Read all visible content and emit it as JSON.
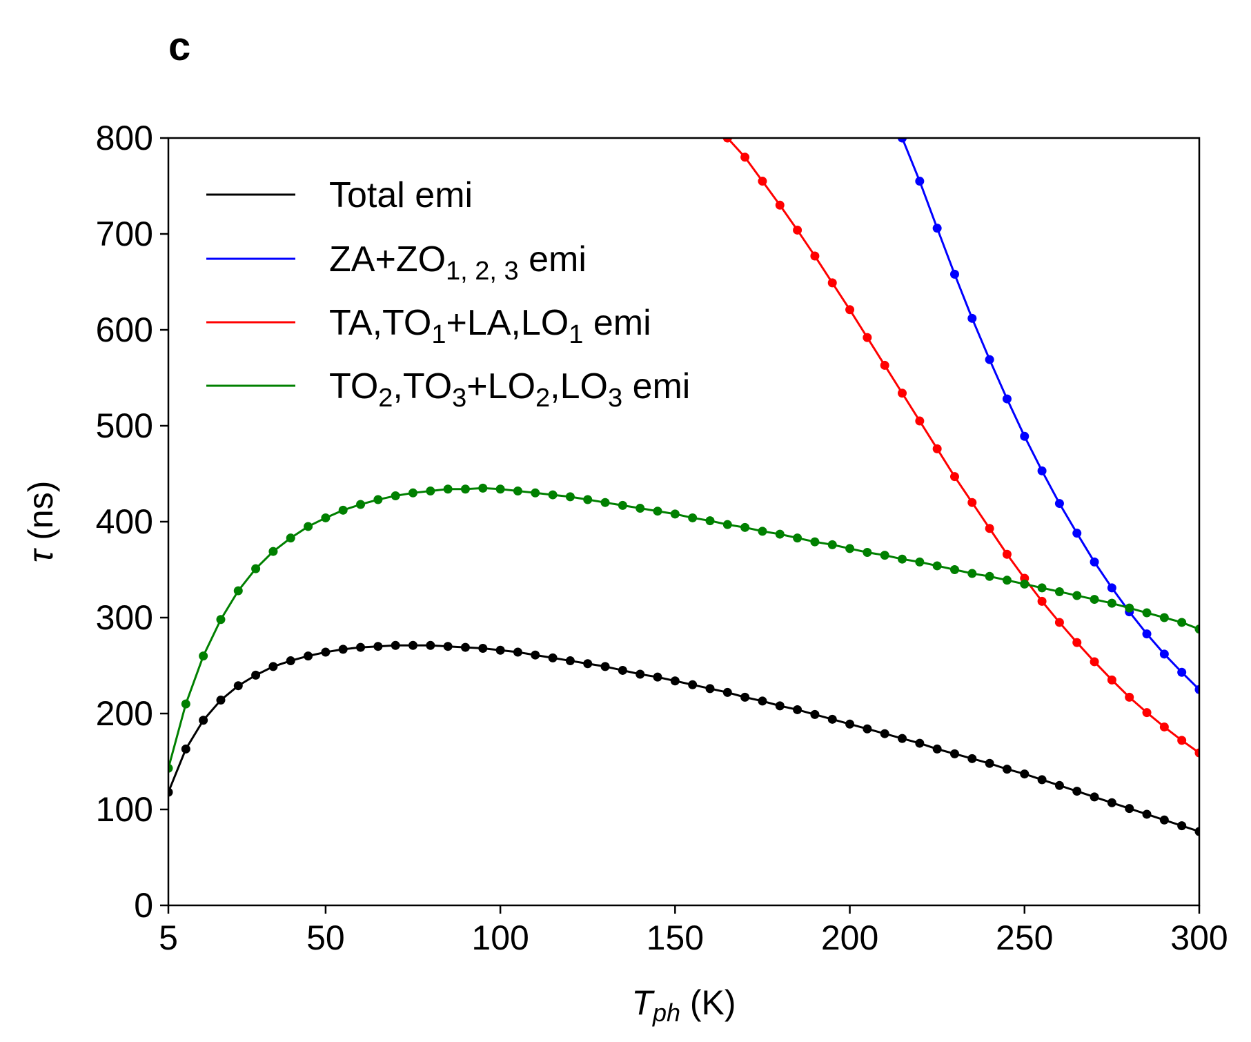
{
  "panel_label": "c",
  "chart_data": {
    "type": "line",
    "xlabel": {
      "main": "T",
      "sub": "ph",
      "unit": " (K)"
    },
    "ylabel": {
      "symbol": "τ",
      "unit": " (ns)"
    },
    "xlim": [
      5,
      300
    ],
    "ylim": [
      0,
      800
    ],
    "xticks": [
      5,
      50,
      100,
      150,
      200,
      250,
      300
    ],
    "yticks": [
      0,
      100,
      200,
      300,
      400,
      500,
      600,
      700,
      800
    ],
    "x": [
      5,
      10,
      15,
      20,
      25,
      30,
      35,
      40,
      45,
      50,
      55,
      60,
      65,
      70,
      75,
      80,
      85,
      90,
      95,
      100,
      105,
      110,
      115,
      120,
      125,
      130,
      135,
      140,
      145,
      150,
      155,
      160,
      165,
      170,
      175,
      180,
      185,
      190,
      195,
      200,
      205,
      210,
      215,
      220,
      225,
      230,
      235,
      240,
      245,
      250,
      255,
      260,
      265,
      270,
      275,
      280,
      285,
      290,
      295,
      300
    ],
    "series": [
      {
        "name": "Total emi",
        "legend": [
          {
            "t": "Total emi"
          }
        ],
        "color": "#000000",
        "values": [
          118,
          163,
          193,
          214,
          229,
          240,
          249,
          255,
          260,
          264,
          267,
          269,
          270,
          271,
          271,
          271,
          270,
          269,
          268,
          266,
          264,
          261,
          258,
          255,
          252,
          249,
          245,
          241,
          238,
          234,
          230,
          226,
          222,
          217,
          213,
          208,
          204,
          199,
          194,
          189,
          184,
          179,
          174,
          169,
          163,
          158,
          153,
          148,
          142,
          137,
          131,
          125,
          119,
          113,
          107,
          101,
          95,
          89,
          83,
          77
        ]
      },
      {
        "name": "ZA+ZO1,2,3 emi",
        "legend": [
          {
            "t": "ZA+ZO"
          },
          {
            "t": "1, 2, 3",
            "sub": true
          },
          {
            "t": " emi"
          }
        ],
        "color": "#0000ff",
        "values": [
          null,
          null,
          null,
          null,
          null,
          null,
          null,
          null,
          null,
          null,
          null,
          null,
          null,
          null,
          null,
          null,
          null,
          null,
          null,
          null,
          null,
          null,
          null,
          null,
          null,
          null,
          null,
          null,
          null,
          null,
          null,
          null,
          null,
          null,
          null,
          null,
          null,
          null,
          null,
          null,
          null,
          null,
          800,
          755,
          706,
          658,
          612,
          569,
          528,
          489,
          453,
          419,
          388,
          358,
          331,
          306,
          283,
          262,
          243,
          225
        ]
      },
      {
        "name": "TA,TO1+LA,LO1 emi",
        "legend": [
          {
            "t": "TA,TO"
          },
          {
            "t": "1",
            "sub": true
          },
          {
            "t": "+LA,LO"
          },
          {
            "t": "1",
            "sub": true
          },
          {
            "t": " emi"
          }
        ],
        "color": "#ff0000",
        "values": [
          null,
          null,
          null,
          null,
          null,
          null,
          null,
          null,
          null,
          null,
          null,
          null,
          null,
          null,
          null,
          null,
          null,
          null,
          null,
          null,
          null,
          null,
          null,
          null,
          null,
          null,
          null,
          null,
          null,
          null,
          null,
          null,
          800,
          780,
          755,
          730,
          704,
          677,
          649,
          621,
          592,
          563,
          534,
          505,
          476,
          447,
          420,
          393,
          366,
          341,
          317,
          295,
          274,
          254,
          235,
          217,
          201,
          186,
          172,
          159
        ]
      },
      {
        "name": "TO2,TO3+LO2,LO3 emi",
        "legend": [
          {
            "t": "TO"
          },
          {
            "t": "2",
            "sub": true
          },
          {
            "t": ",TO"
          },
          {
            "t": "3",
            "sub": true
          },
          {
            "t": "+LO"
          },
          {
            "t": "2",
            "sub": true
          },
          {
            "t": ",LO"
          },
          {
            "t": "3",
            "sub": true
          },
          {
            "t": " emi"
          }
        ],
        "color": "#008000",
        "values": [
          143,
          210,
          260,
          298,
          328,
          351,
          369,
          383,
          395,
          404,
          412,
          418,
          423,
          427,
          430,
          432,
          434,
          434,
          435,
          434,
          432,
          430,
          428,
          426,
          423,
          420,
          417,
          414,
          411,
          408,
          404,
          401,
          397,
          394,
          390,
          387,
          383,
          379,
          376,
          372,
          368,
          365,
          361,
          358,
          354,
          350,
          346,
          343,
          339,
          335,
          331,
          327,
          323,
          319,
          315,
          310,
          305,
          300,
          295,
          288
        ]
      }
    ],
    "legend_position": "upper-left"
  }
}
